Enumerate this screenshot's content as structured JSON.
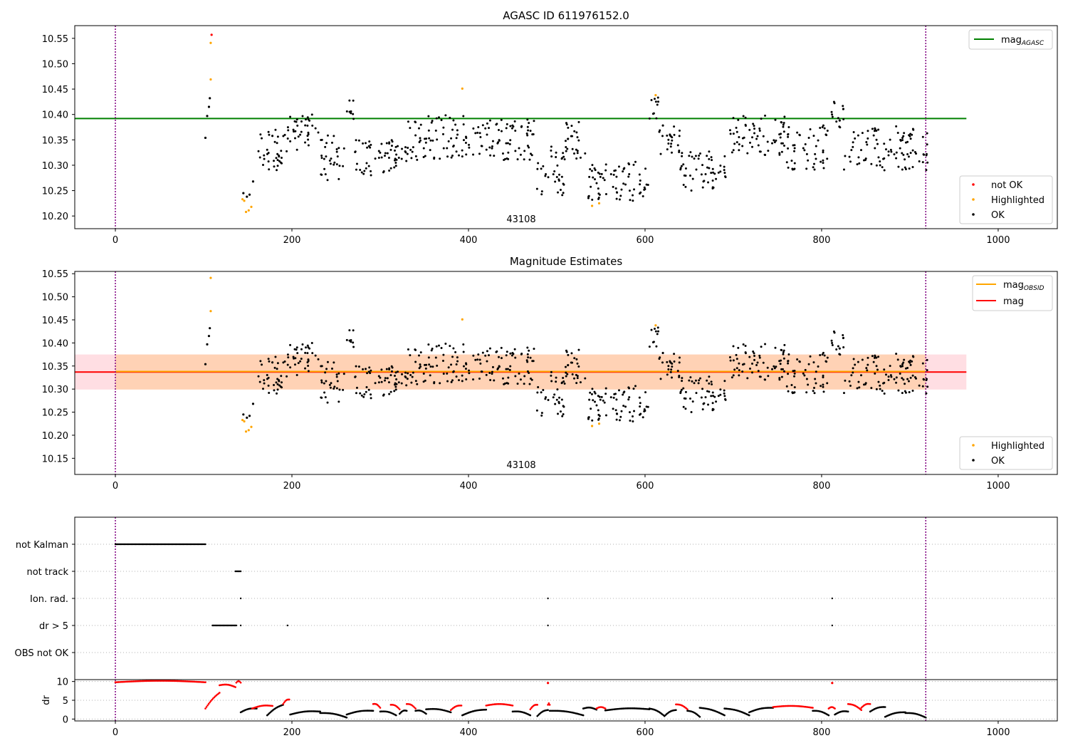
{
  "chart_data": [
    {
      "type": "scatter",
      "title": "AGASC ID 611976152.0",
      "xlim": [
        -46,
        1067
      ],
      "ylim": [
        10.175,
        10.575
      ],
      "xticks": [
        0,
        200,
        400,
        600,
        800,
        1000
      ],
      "yticks": [
        10.2,
        10.25,
        10.3,
        10.35,
        10.4,
        10.45,
        10.5,
        10.55
      ],
      "obsid_label": "43108",
      "obsid_label_x": 460,
      "vlines": [
        0,
        918
      ],
      "hline": {
        "name": "mag",
        "sub": "AGASC",
        "y": 10.392,
        "x": [
          -46,
          964
        ],
        "color": "#008000"
      },
      "legend_top": [
        {
          "name": "mag",
          "sub": "AGASC",
          "color": "#008000",
          "marker": "line"
        }
      ],
      "legend_bottom": [
        {
          "name": "not OK",
          "color": "#ff0000",
          "marker": "dot"
        },
        {
          "name": "Highlighted",
          "color": "#ffa500",
          "marker": "dot"
        },
        {
          "name": "OK",
          "color": "#000000",
          "marker": "dot"
        }
      ],
      "series": [
        {
          "name": "not OK",
          "color": "#ff0000",
          "points": [
            [
              109,
              10.557
            ]
          ]
        },
        {
          "name": "Highlighted",
          "color": "#ffa500",
          "points": [
            [
              108,
              10.541
            ],
            [
              108,
              10.469
            ],
            [
              144,
              10.233
            ],
            [
              146,
              10.23
            ],
            [
              148,
              10.208
            ],
            [
              151,
              10.211
            ],
            [
              154,
              10.218
            ],
            [
              393,
              10.451
            ],
            [
              540,
              10.22
            ],
            [
              548,
              10.225
            ],
            [
              612,
              10.438
            ]
          ]
        },
        {
          "name": "OK",
          "color": "#000000",
          "points": [
            [
              102,
              10.354
            ],
            [
              104,
              10.397
            ],
            [
              106,
              10.415
            ],
            [
              107,
              10.432
            ],
            [
              145,
              10.245
            ],
            [
              149,
              10.238
            ],
            [
              152,
              10.242
            ],
            [
              156,
              10.268
            ]
          ]
        }
      ],
      "ok_cloud": [
        [
          158,
          195,
          10.29,
          10.37
        ],
        [
          195,
          230,
          10.33,
          10.4
        ],
        [
          230,
          260,
          10.27,
          10.36
        ],
        [
          262,
          270,
          10.39,
          10.43
        ],
        [
          270,
          330,
          10.28,
          10.35
        ],
        [
          330,
          400,
          10.31,
          10.4
        ],
        [
          400,
          475,
          10.31,
          10.39
        ],
        [
          475,
          510,
          10.24,
          10.34
        ],
        [
          510,
          535,
          10.31,
          10.39
        ],
        [
          535,
          605,
          10.23,
          10.31
        ],
        [
          605,
          615,
          10.39,
          10.435
        ],
        [
          615,
          640,
          10.32,
          10.38
        ],
        [
          640,
          695,
          10.25,
          10.33
        ],
        [
          695,
          760,
          10.32,
          10.4
        ],
        [
          760,
          810,
          10.29,
          10.38
        ],
        [
          810,
          825,
          10.37,
          10.425
        ],
        [
          825,
          920,
          10.29,
          10.38
        ]
      ]
    },
    {
      "type": "scatter",
      "title": "Magnitude Estimates",
      "xlim": [
        -46,
        1067
      ],
      "ylim": [
        10.115,
        10.555
      ],
      "xticks": [
        0,
        200,
        400,
        600,
        800,
        1000
      ],
      "yticks": [
        10.15,
        10.2,
        10.25,
        10.3,
        10.35,
        10.4,
        10.45,
        10.5,
        10.55
      ],
      "obsid_label": "43108",
      "obsid_label_x": 460,
      "vlines": [
        0,
        918
      ],
      "mag_line": {
        "name": "mag",
        "y": 10.337,
        "color": "#ff0000"
      },
      "mag_band": [
        10.299,
        10.375
      ],
      "mag_obsid_line": {
        "name": "mag",
        "sub": "OBSID",
        "y": 10.338,
        "color": "#ffa500"
      },
      "legend_top": [
        {
          "name": "mag",
          "sub": "OBSID",
          "color": "#ffa500",
          "marker": "line"
        },
        {
          "name": "mag",
          "sub": "",
          "color": "#ff0000",
          "marker": "line"
        }
      ],
      "legend_bottom": [
        {
          "name": "Highlighted",
          "color": "#ffa500",
          "marker": "dot"
        },
        {
          "name": "OK",
          "color": "#000000",
          "marker": "dot"
        }
      ]
    },
    {
      "type": "scatter",
      "xlim": [
        -46,
        1067
      ],
      "categories": [
        "not Kalman",
        "not track",
        "Ion. rad.",
        "dr > 5",
        "OBS not OK"
      ],
      "flags": [
        {
          "label": "not Kalman",
          "segments": [
            [
              0,
              102
            ]
          ],
          "points": []
        },
        {
          "label": "not track",
          "segments": [
            [
              136,
              142
            ]
          ],
          "points": []
        },
        {
          "label": "Ion. rad.",
          "segments": [],
          "points": [
            142,
            490,
            812
          ]
        },
        {
          "label": "dr > 5",
          "segments": [
            [
              110,
              137
            ]
          ],
          "points": [
            142,
            195,
            490,
            812
          ]
        },
        {
          "label": "OBS not OK",
          "segments": [],
          "points": []
        }
      ]
    },
    {
      "type": "scatter",
      "xlim": [
        -46,
        1067
      ],
      "ylabel": "dr",
      "yticks": [
        0,
        5,
        10
      ],
      "ylim": [
        -0.5,
        10.5
      ],
      "dr_segments": [
        {
          "x": [
            0,
            102
          ],
          "y": [
            9.8,
            9.8
          ],
          "color": "#ff0000"
        },
        {
          "x": [
            102,
            118
          ],
          "y": [
            2.8,
            7.0
          ],
          "color": "#ff0000"
        },
        {
          "x": [
            118,
            136
          ],
          "y": [
            9.0,
            8.5
          ],
          "color": "#ff0000"
        },
        {
          "x": [
            137,
            142
          ],
          "y": [
            9.7,
            9.7
          ],
          "color": "#ff0000"
        },
        {
          "x": [
            142,
            160
          ],
          "y": [
            1.8,
            2.8
          ],
          "color": "#000000"
        },
        {
          "x": [
            155,
            178
          ],
          "y": [
            2.8,
            3.5
          ],
          "color": "#ff0000"
        },
        {
          "x": [
            172,
            190
          ],
          "y": [
            1.0,
            3.8
          ],
          "color": "#000000"
        },
        {
          "x": [
            190,
            197
          ],
          "y": [
            4.0,
            5.2
          ],
          "color": "#ff0000"
        },
        {
          "x": [
            198,
            232
          ],
          "y": [
            1.2,
            2.0
          ],
          "color": "#000000"
        },
        {
          "x": [
            232,
            262
          ],
          "y": [
            1.6,
            0.4
          ],
          "color": "#000000"
        },
        {
          "x": [
            262,
            292
          ],
          "y": [
            1.2,
            2.2
          ],
          "color": "#000000"
        },
        {
          "x": [
            292,
            300
          ],
          "y": [
            4.0,
            3.0
          ],
          "color": "#ff0000"
        },
        {
          "x": [
            300,
            318
          ],
          "y": [
            2.0,
            1.0
          ],
          "color": "#000000"
        },
        {
          "x": [
            312,
            322
          ],
          "y": [
            3.8,
            2.6
          ],
          "color": "#ff0000"
        },
        {
          "x": [
            322,
            330
          ],
          "y": [
            1.4,
            2.2
          ],
          "color": "#000000"
        },
        {
          "x": [
            330,
            340
          ],
          "y": [
            4.0,
            2.8
          ],
          "color": "#ff0000"
        },
        {
          "x": [
            340,
            352
          ],
          "y": [
            2.2,
            1.4
          ],
          "color": "#000000"
        },
        {
          "x": [
            352,
            380
          ],
          "y": [
            2.6,
            1.8
          ],
          "color": "#000000"
        },
        {
          "x": [
            380,
            392
          ],
          "y": [
            2.4,
            3.6
          ],
          "color": "#ff0000"
        },
        {
          "x": [
            393,
            420
          ],
          "y": [
            1.0,
            2.5
          ],
          "color": "#000000"
        },
        {
          "x": [
            420,
            450
          ],
          "y": [
            3.6,
            3.6
          ],
          "color": "#ff0000"
        },
        {
          "x": [
            450,
            470
          ],
          "y": [
            2.0,
            1.0
          ],
          "color": "#000000"
        },
        {
          "x": [
            470,
            478
          ],
          "y": [
            2.6,
            3.8
          ],
          "color": "#ff0000"
        },
        {
          "x": [
            478,
            490
          ],
          "y": [
            0.8,
            2.4
          ],
          "color": "#000000"
        },
        {
          "x": [
            490,
            492
          ],
          "y": [
            3.8,
            3.8
          ],
          "color": "#ff0000"
        },
        {
          "x": [
            492,
            530
          ],
          "y": [
            2.2,
            1.0
          ],
          "color": "#000000"
        },
        {
          "x": [
            530,
            545
          ],
          "y": [
            2.8,
            2.5
          ],
          "color": "#000000"
        },
        {
          "x": [
            545,
            555
          ],
          "y": [
            2.8,
            2.8
          ],
          "color": "#ff0000"
        },
        {
          "x": [
            555,
            605
          ],
          "y": [
            2.3,
            2.6
          ],
          "color": "#000000"
        },
        {
          "x": [
            605,
            622
          ],
          "y": [
            2.8,
            0.8
          ],
          "color": "#000000"
        },
        {
          "x": [
            622,
            635
          ],
          "y": [
            0.8,
            2.4
          ],
          "color": "#000000"
        },
        {
          "x": [
            635,
            648
          ],
          "y": [
            3.9,
            2.6
          ],
          "color": "#ff0000"
        },
        {
          "x": [
            648,
            662
          ],
          "y": [
            2.2,
            0.6
          ],
          "color": "#000000"
        },
        {
          "x": [
            662,
            690
          ],
          "y": [
            3.0,
            1.0
          ],
          "color": "#000000"
        },
        {
          "x": [
            690,
            718
          ],
          "y": [
            2.8,
            1.0
          ],
          "color": "#000000"
        },
        {
          "x": [
            718,
            745
          ],
          "y": [
            1.8,
            3.0
          ],
          "color": "#000000"
        },
        {
          "x": [
            745,
            790
          ],
          "y": [
            3.2,
            3.0
          ],
          "color": "#ff0000"
        },
        {
          "x": [
            790,
            808
          ],
          "y": [
            2.2,
            1.0
          ],
          "color": "#000000"
        },
        {
          "x": [
            808,
            815
          ],
          "y": [
            2.8,
            2.8
          ],
          "color": "#ff0000"
        },
        {
          "x": [
            815,
            830
          ],
          "y": [
            1.2,
            2.0
          ],
          "color": "#000000"
        },
        {
          "x": [
            830,
            845
          ],
          "y": [
            4.0,
            2.4
          ],
          "color": "#ff0000"
        },
        {
          "x": [
            845,
            855
          ],
          "y": [
            3.0,
            4.0
          ],
          "color": "#ff0000"
        },
        {
          "x": [
            855,
            872
          ],
          "y": [
            2.0,
            3.2
          ],
          "color": "#000000"
        },
        {
          "x": [
            872,
            895
          ],
          "y": [
            0.6,
            1.8
          ],
          "color": "#000000"
        },
        {
          "x": [
            895,
            918
          ],
          "y": [
            1.6,
            0.4
          ],
          "color": "#000000"
        }
      ],
      "dr_points": [
        [
          490,
          9.6,
          "#ff0000"
        ],
        [
          812,
          9.6,
          "#ff0000"
        ]
      ]
    }
  ]
}
